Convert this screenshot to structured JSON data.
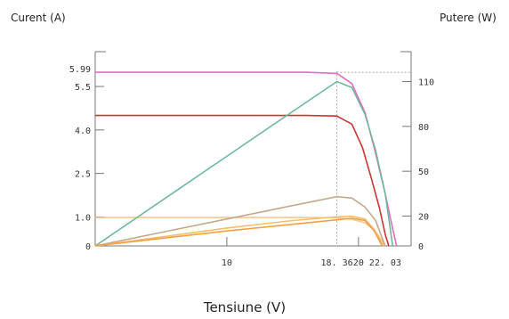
{
  "chart_data": {
    "type": "line",
    "title": "",
    "xlabel": "Tensiune (V)",
    "ylabel_left": "Curent (A)",
    "ylabel_right": "Putere (W)",
    "xlim": [
      0,
      24
    ],
    "ylim_left": [
      0,
      6.7
    ],
    "ylim_right": [
      0,
      130
    ],
    "x_ticks": [
      {
        "value": 10,
        "label": "10"
      },
      {
        "value": 18.36,
        "label": "18. 36"
      },
      {
        "value": 20,
        "label": "20"
      },
      {
        "value": 22.03,
        "label": "22. 03"
      }
    ],
    "y_left_ticks": [
      {
        "value": 0,
        "label": "0"
      },
      {
        "value": 1.0,
        "label": "1.0"
      },
      {
        "value": 2.5,
        "label": "2.5"
      },
      {
        "value": 4.0,
        "label": "4.0"
      },
      {
        "value": 5.5,
        "label": "5.5"
      },
      {
        "value": 5.99,
        "label": "5.99",
        "color": "#d9534f"
      }
    ],
    "y_right_ticks": [
      {
        "value": 0,
        "label": "0"
      },
      {
        "value": 20,
        "label": "20"
      },
      {
        "value": 50,
        "label": "50"
      },
      {
        "value": 80,
        "label": "80"
      },
      {
        "value": 110,
        "label": "110"
      }
    ],
    "reference_lines": [
      {
        "axis": "x",
        "value": 18.36
      },
      {
        "axis": "y_left",
        "value": 5.99
      }
    ],
    "series": [
      {
        "axis": "left",
        "color": "#e06cc0",
        "x": [
          0,
          16,
          18.36,
          19.5,
          20.5,
          21.3,
          22.03,
          22.5,
          22.9
        ],
        "y": [
          5.99,
          5.99,
          5.95,
          5.6,
          4.6,
          3.2,
          1.8,
          0.8,
          0
        ]
      },
      {
        "axis": "left",
        "color": "#cc3333",
        "x": [
          0,
          16,
          18.36,
          19.5,
          20.3,
          21.0,
          21.6,
          22.03,
          22.3
        ],
        "y": [
          4.5,
          4.5,
          4.48,
          4.2,
          3.4,
          2.3,
          1.3,
          0.4,
          0
        ]
      },
      {
        "axis": "left",
        "color": "#f5c890",
        "x": [
          0,
          16,
          18.36,
          19.5,
          20.5,
          21.2,
          21.7,
          22.0
        ],
        "y": [
          0.98,
          0.98,
          0.97,
          0.92,
          0.8,
          0.55,
          0.25,
          0
        ]
      },
      {
        "axis": "right",
        "color": "#6fb89c",
        "x": [
          0,
          5,
          10,
          15,
          18.36,
          19.5,
          20.5,
          21.3,
          22.03,
          22.6
        ],
        "y": [
          0,
          30,
          60,
          90,
          110,
          106,
          88,
          64,
          35,
          0
        ]
      },
      {
        "axis": "right",
        "color": "#c4a88e",
        "x": [
          0,
          5,
          10,
          15,
          18.36,
          19.5,
          20.5,
          21.3,
          22.03
        ],
        "y": [
          0,
          9,
          18,
          27,
          33,
          32,
          26,
          17,
          0
        ]
      },
      {
        "axis": "right",
        "color": "#f0c070",
        "x": [
          0,
          5,
          10,
          15,
          18.36,
          19.5,
          20.5,
          21.2,
          21.9
        ],
        "y": [
          0,
          6,
          12,
          17,
          19.5,
          19.8,
          18,
          11,
          0
        ]
      },
      {
        "axis": "right",
        "color": "#f5a040",
        "x": [
          0,
          5,
          10,
          15,
          18.36,
          19.5,
          20.5,
          21.2,
          21.8
        ],
        "y": [
          0,
          5,
          10,
          14.5,
          17.5,
          18.5,
          17,
          10,
          0
        ]
      }
    ]
  }
}
